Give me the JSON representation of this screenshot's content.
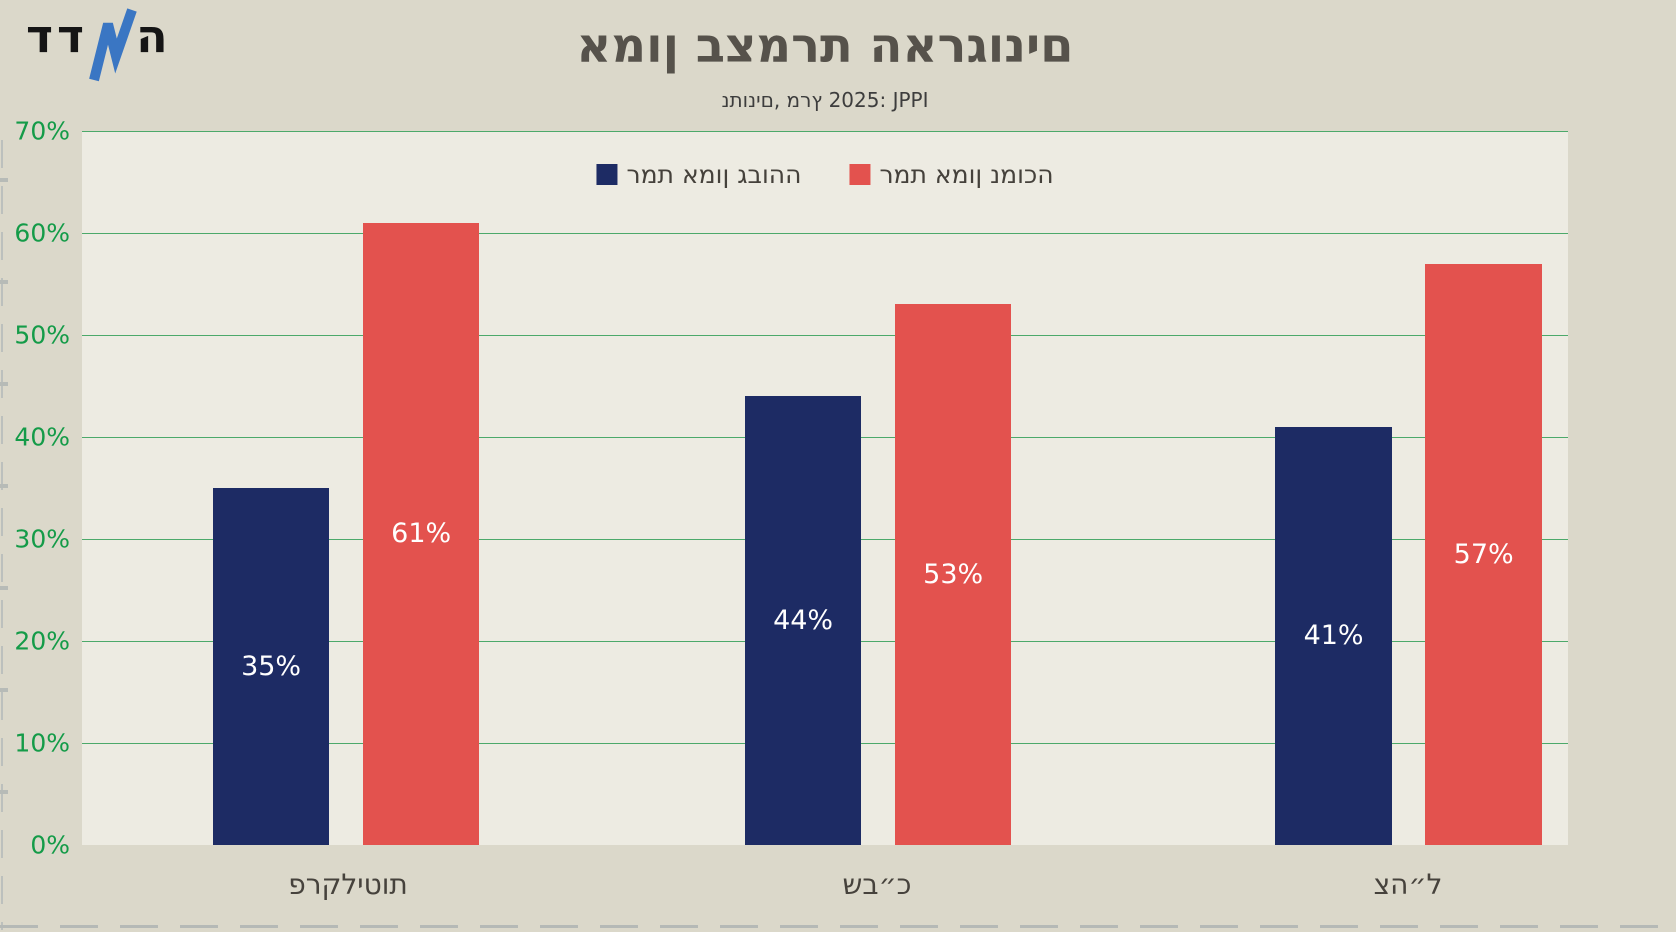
{
  "logo": {
    "text": "המדד",
    "part_dalet_dalet": "דד",
    "part_he": "ה",
    "zigzag_color": "#3a76c3"
  },
  "header": {
    "title": "אמון בצמרת הארגונים",
    "subtitle": "נתונים, מרץ 2025: JPPI"
  },
  "colors": {
    "background_outer": "#dbd8ca",
    "background_plot": "#edebe2",
    "grid_green": "#2f9e55",
    "tick_label_green": "#149b48",
    "title_gray": "#56524b",
    "high_trust_navy": "#1d2b64",
    "low_trust_red": "#e3524e",
    "bar_value_text": "#ffffff"
  },
  "chart_data": {
    "type": "bar",
    "title": "אמון בצמרת הארגונים",
    "subtitle": "נתונים, מרץ 2025: JPPI",
    "categories": [
      "פרקליטות",
      "שב״כ",
      "צה״ל"
    ],
    "series": [
      {
        "name": "רמת אמון גבוהה",
        "color": "#1d2b64",
        "values": [
          35,
          44,
          41
        ],
        "labels": [
          "35%",
          "44%",
          "41%"
        ]
      },
      {
        "name": "רמת אמון נמוכה",
        "color": "#e3524e",
        "values": [
          61,
          53,
          57
        ],
        "labels": [
          "61%",
          "53%",
          "57%"
        ]
      }
    ],
    "ylim": [
      0,
      70
    ],
    "yticks_top_to_bottom": [
      "70%",
      "60%",
      "50%",
      "40%",
      "30%",
      "20%",
      "10%",
      "0%"
    ],
    "grid": true,
    "legend_position": "upper center"
  }
}
